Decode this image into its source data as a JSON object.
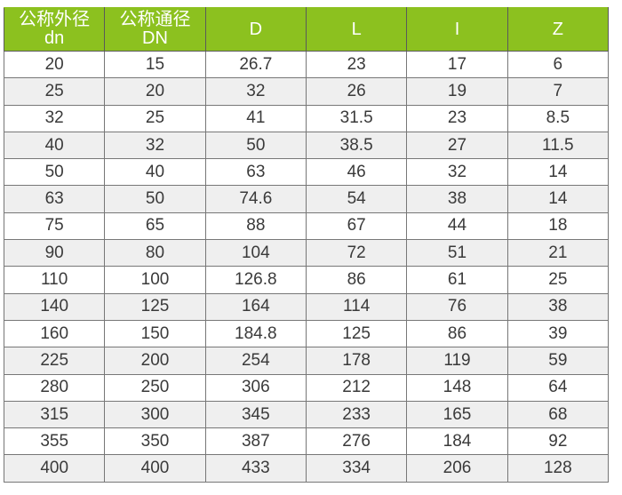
{
  "table": {
    "headers": [
      {
        "line1": "公称外径",
        "line2": "dn"
      },
      {
        "line1": "公称通径",
        "line2": "DN"
      },
      {
        "line1": "D",
        "line2": ""
      },
      {
        "line1": "L",
        "line2": ""
      },
      {
        "line1": "I",
        "line2": ""
      },
      {
        "line1": "Z",
        "line2": ""
      }
    ],
    "rows": [
      [
        "20",
        "15",
        "26.7",
        "23",
        "17",
        "6"
      ],
      [
        "25",
        "20",
        "32",
        "26",
        "19",
        "7"
      ],
      [
        "32",
        "25",
        "41",
        "31.5",
        "23",
        "8.5"
      ],
      [
        "40",
        "32",
        "50",
        "38.5",
        "27",
        "11.5"
      ],
      [
        "50",
        "40",
        "63",
        "46",
        "32",
        "14"
      ],
      [
        "63",
        "50",
        "74.6",
        "54",
        "38",
        "14"
      ],
      [
        "75",
        "65",
        "88",
        "67",
        "44",
        "18"
      ],
      [
        "90",
        "80",
        "104",
        "72",
        "51",
        "21"
      ],
      [
        "110",
        "100",
        "126.8",
        "86",
        "61",
        "25"
      ],
      [
        "140",
        "125",
        "164",
        "114",
        "76",
        "38"
      ],
      [
        "160",
        "150",
        "184.8",
        "125",
        "86",
        "39"
      ],
      [
        "225",
        "200",
        "254",
        "178",
        "119",
        "59"
      ],
      [
        "280",
        "250",
        "306",
        "212",
        "148",
        "64"
      ],
      [
        "315",
        "300",
        "345",
        "233",
        "165",
        "68"
      ],
      [
        "355",
        "350",
        "387",
        "276",
        "184",
        "92"
      ],
      [
        "400",
        "400",
        "433",
        "334",
        "206",
        "128"
      ]
    ],
    "colors": {
      "header_bg": "#8cc11f",
      "alt_row_bg": "#efefef"
    }
  }
}
